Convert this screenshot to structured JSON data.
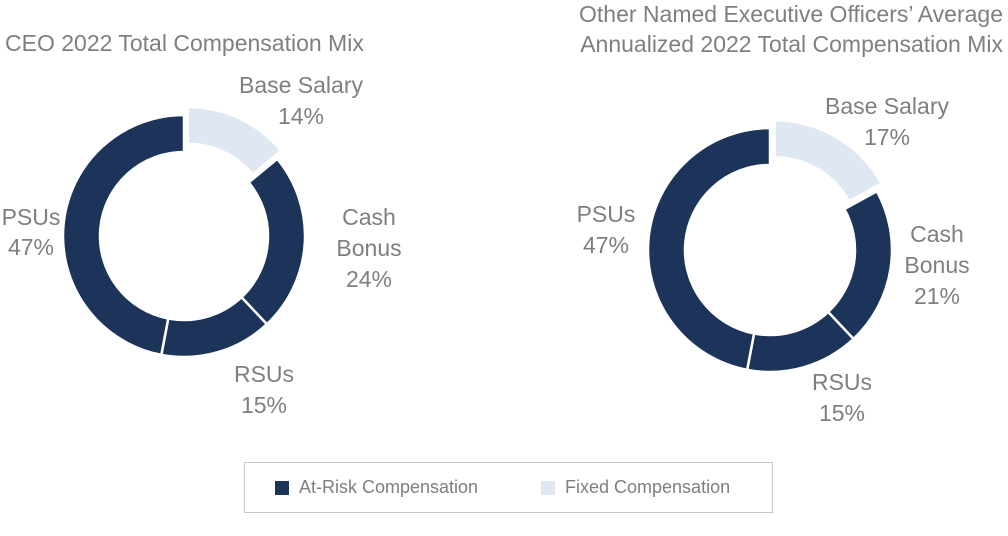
{
  "colors": {
    "at_risk": "#1c335a",
    "fixed": "#dfe7f2",
    "text": "#7f7f7f"
  },
  "chart_data": [
    {
      "type": "pie",
      "variant": "donut",
      "title": [
        "CEO 2022 Total Compensation Mix"
      ],
      "slices": [
        {
          "label": "Base Salary",
          "value": 14,
          "display": "14%",
          "category": "fixed"
        },
        {
          "label": "Cash Bonus",
          "value": 24,
          "display": "24%",
          "category": "at_risk"
        },
        {
          "label": "RSUs",
          "value": 15,
          "display": "15%",
          "category": "at_risk"
        },
        {
          "label": "PSUs",
          "value": 47,
          "display": "47%",
          "category": "at_risk"
        }
      ]
    },
    {
      "type": "pie",
      "variant": "donut",
      "title": [
        "Other Named Executive Officers’ Average",
        "Annualized 2022 Total Compensation Mix"
      ],
      "slices": [
        {
          "label": "Base Salary",
          "value": 17,
          "display": "17%",
          "category": "fixed"
        },
        {
          "label": "Cash Bonus",
          "value": 21,
          "display": "21%",
          "category": "at_risk"
        },
        {
          "label": "RSUs",
          "value": 15,
          "display": "15%",
          "category": "at_risk"
        },
        {
          "label": "PSUs",
          "value": 47,
          "display": "47%",
          "category": "at_risk"
        }
      ]
    }
  ],
  "legend": [
    {
      "label": "At-Risk Compensation",
      "category": "at_risk"
    },
    {
      "label": "Fixed Compensation",
      "category": "fixed"
    }
  ]
}
